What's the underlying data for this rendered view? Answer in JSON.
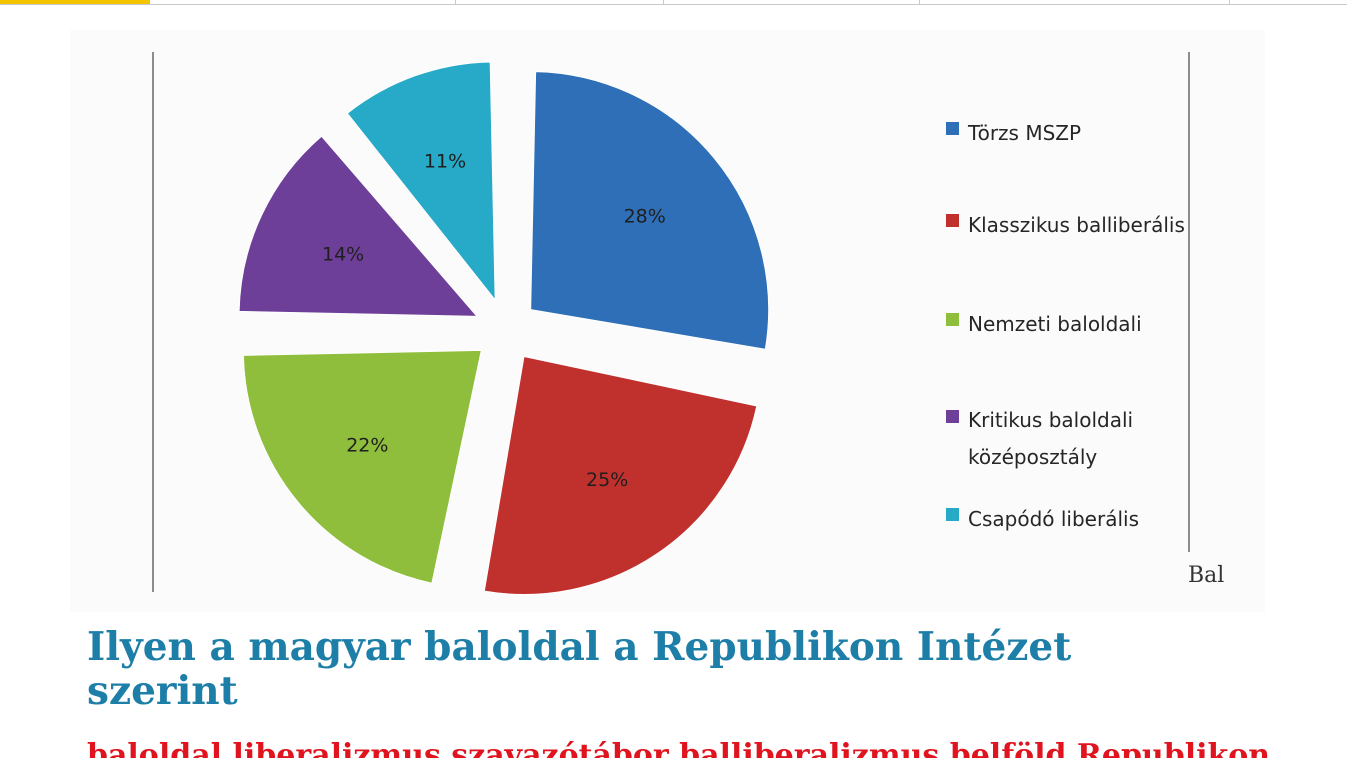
{
  "chart_data": {
    "type": "pie",
    "exploded": true,
    "slices": [
      {
        "label": "Törzs MSZP",
        "value": 28,
        "display": "28%",
        "color": "#2f6fb7"
      },
      {
        "label": "Klasszikus balliberális",
        "value": 25,
        "display": "25%",
        "color": "#c0312e"
      },
      {
        "label": "Nemzeti baloldali",
        "value": 22,
        "display": "22%",
        "color": "#8fbe3d"
      },
      {
        "label": "Kritikus baloldali középosztály",
        "value": 14,
        "display": "14%",
        "color": "#6e3f99"
      },
      {
        "label": "Csapódó liberális",
        "value": 11,
        "display": "11%",
        "color": "#27a9c8"
      }
    ],
    "legend_position": "right"
  },
  "side_text": "Bal",
  "headline": "Ilyen a magyar baloldal a Republikon Intézet szerint",
  "tags_line": "baloldal liberalizmus szavazótábor balliberalizmus belföld Republikon"
}
